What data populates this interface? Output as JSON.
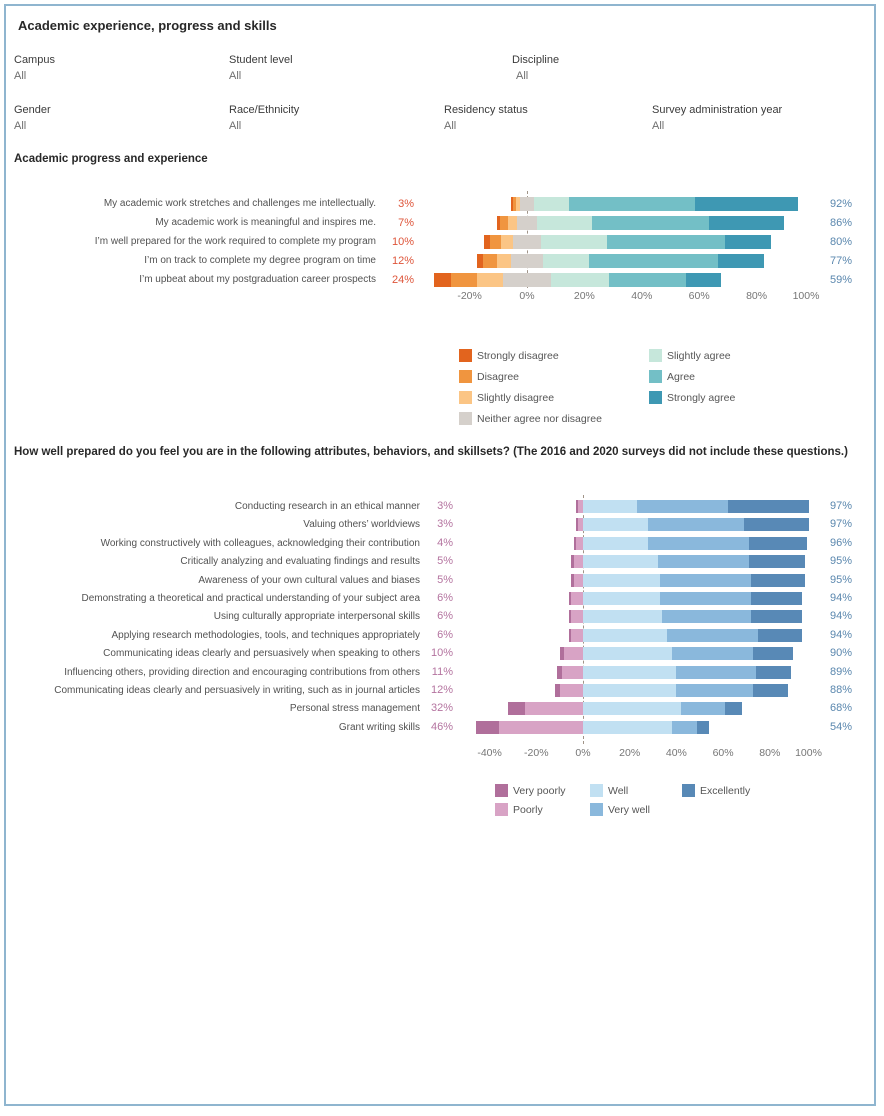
{
  "title": "Academic experience, progress and skills",
  "filters": {
    "row1": [
      {
        "label": "Campus",
        "value": "All"
      },
      {
        "label": "Student level",
        "value": "All"
      },
      {
        "label": "Discipline",
        "value": "All"
      }
    ],
    "row2": [
      {
        "label": "Gender",
        "value": "All"
      },
      {
        "label": "Race/Ethnicity",
        "value": "All"
      },
      {
        "label": "Residency status",
        "value": "All"
      },
      {
        "label": "Survey administration year",
        "value": "All"
      }
    ]
  },
  "colors": {
    "frame_border": "#8fb5cf",
    "neg_pct_chart1": "#de553a",
    "neg_pct_chart2": "#b4739f",
    "pos_pct": "#5a87ae"
  },
  "chart_data": [
    {
      "type": "bar",
      "variant": "diverging-stacked-horizontal",
      "title": "Academic progress and experience",
      "categories": [
        "Strongly disagree",
        "Disagree",
        "Slightly disagree",
        "Neither agree nor disagree",
        "Slightly agree",
        "Agree",
        "Strongly agree"
      ],
      "colors": [
        "#e2641e",
        "#f0953f",
        "#fbc585",
        "#d5d0cb",
        "#c6e7db",
        "#73bfc6",
        "#3e98b3"
      ],
      "neg_count": 3,
      "neutral_index": 3,
      "axis_ticks": [
        -20,
        0,
        20,
        40,
        60,
        80,
        100
      ],
      "axis_format": "percent",
      "legend_position": "bottom",
      "rows": [
        {
          "label": "My academic work stretches and challenges me intellectually.",
          "neg_label": "3%",
          "pos_label": "92%",
          "values": [
            0.5,
            1.0,
            1.5,
            5,
            12,
            44,
            36
          ]
        },
        {
          "label": "My academic work is meaningful and inspires me.",
          "neg_label": "7%",
          "pos_label": "86%",
          "values": [
            1,
            3,
            3,
            7,
            19,
            41,
            26
          ]
        },
        {
          "label": "I’m well prepared for the work required to complete my program",
          "neg_label": "10%",
          "pos_label": "80%",
          "values": [
            2,
            4,
            4,
            10,
            23,
            41,
            16
          ]
        },
        {
          "label": "I’m on track to complete my degree program on time",
          "neg_label": "12%",
          "pos_label": "77%",
          "values": [
            2,
            5,
            5,
            11,
            16,
            45,
            16
          ]
        },
        {
          "label": "I’m upbeat about my postgraduation career prospects",
          "neg_label": "24%",
          "pos_label": "59%",
          "values": [
            6,
            9,
            9,
            17,
            20,
            27,
            12
          ]
        }
      ]
    },
    {
      "type": "bar",
      "variant": "diverging-stacked-horizontal",
      "title": "How well prepared do you feel you are in the following attributes, behaviors, and skillsets? (The 2016 and 2020 surveys did not include these questions.)",
      "categories": [
        "Very poorly",
        "Poorly",
        "Well",
        "Very well",
        "Excellently"
      ],
      "colors": [
        "#b06f9b",
        "#d8a3c5",
        "#c1e0f2",
        "#8ab8dc",
        "#5889b6"
      ],
      "neg_count": 2,
      "neutral_index": -1,
      "axis_ticks": [
        -40,
        -20,
        0,
        20,
        40,
        60,
        80,
        100
      ],
      "axis_format": "percent",
      "legend_position": "bottom",
      "rows": [
        {
          "label": "Conducting research in an ethical manner",
          "neg_label": "3%",
          "pos_label": "97%",
          "values": [
            1,
            2,
            23,
            39,
            35
          ]
        },
        {
          "label": "Valuing others’ worldviews",
          "neg_label": "3%",
          "pos_label": "97%",
          "values": [
            1,
            2,
            28,
            41,
            28
          ]
        },
        {
          "label": "Working constructively with colleagues, acknowledging their contribution",
          "neg_label": "4%",
          "pos_label": "96%",
          "values": [
            1,
            3,
            28,
            43,
            25
          ]
        },
        {
          "label": "Critically analyzing and evaluating findings and results",
          "neg_label": "5%",
          "pos_label": "95%",
          "values": [
            1,
            4,
            32,
            39,
            24
          ]
        },
        {
          "label": "Awareness of your own cultural values and biases",
          "neg_label": "5%",
          "pos_label": "95%",
          "values": [
            1,
            4,
            33,
            39,
            23
          ]
        },
        {
          "label": "Demonstrating a theoretical and practical understanding of your subject area",
          "neg_label": "6%",
          "pos_label": "94%",
          "values": [
            1,
            5,
            33,
            39,
            22
          ]
        },
        {
          "label": "Using culturally appropriate interpersonal skills",
          "neg_label": "6%",
          "pos_label": "94%",
          "values": [
            1,
            5,
            34,
            38,
            22
          ]
        },
        {
          "label": "Applying research methodologies, tools, and techniques appropriately",
          "neg_label": "6%",
          "pos_label": "94%",
          "values": [
            1,
            5,
            36,
            39,
            19
          ]
        },
        {
          "label": "Communicating ideas clearly and persuasively when speaking to others",
          "neg_label": "10%",
          "pos_label": "90%",
          "values": [
            2,
            8,
            38,
            35,
            17
          ]
        },
        {
          "label": "Influencing others, providing direction and encouraging contributions from others",
          "neg_label": "11%",
          "pos_label": "89%",
          "values": [
            2,
            9,
            40,
            34,
            15
          ]
        },
        {
          "label": "Communicating ideas clearly and persuasively in writing, such as in journal articles",
          "neg_label": "12%",
          "pos_label": "88%",
          "values": [
            2,
            10,
            40,
            33,
            15
          ]
        },
        {
          "label": "Personal stress management",
          "neg_label": "32%",
          "pos_label": "68%",
          "values": [
            7,
            25,
            42,
            19,
            7
          ]
        },
        {
          "label": "Grant writing skills",
          "neg_label": "46%",
          "pos_label": "54%",
          "values": [
            10,
            36,
            38,
            11,
            5
          ]
        }
      ]
    }
  ]
}
